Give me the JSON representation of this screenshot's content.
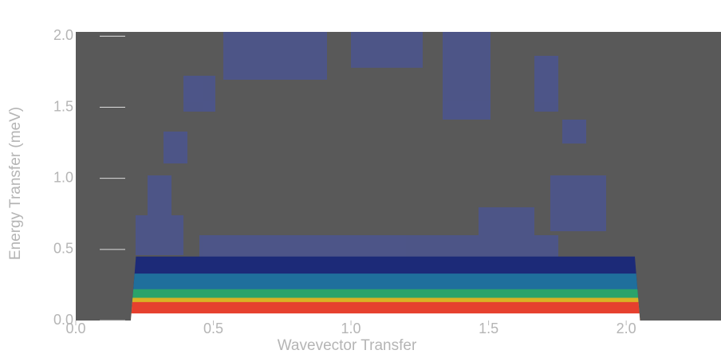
{
  "chart_data": {
    "type": "surface",
    "x_label": "Wavevector Transfer",
    "y_label": "Energy Transfer (meV)",
    "xlim": [
      0,
      2.33
    ],
    "ylim": [
      0,
      2.03
    ],
    "xticks": [
      {
        "value": 0,
        "label": "0.0"
      },
      {
        "value": 0.5,
        "label": "0.5"
      },
      {
        "value": 1,
        "label": "1.0"
      },
      {
        "value": 1.5,
        "label": "1.5"
      },
      {
        "value": 2,
        "label": "2.0"
      }
    ],
    "yticks": [
      {
        "value": 0,
        "label": "0.0"
      },
      {
        "value": 0.5,
        "label": "0.5"
      },
      {
        "value": 1,
        "label": "1.0"
      },
      {
        "value": 1.5,
        "label": "1.5"
      },
      {
        "value": 2,
        "label": "2.0"
      }
    ],
    "x_range": [
      0.2,
      2.05
    ],
    "layers": [
      {
        "color": "#1c2a78",
        "top": 0.45
      },
      {
        "color": "#1f6f9c",
        "top": 0.33
      },
      {
        "color": "#2aa36a",
        "top": 0.22
      },
      {
        "color": "#d9b224",
        "top": 0.16
      },
      {
        "color": "#e6402e",
        "top": 0.13
      },
      {
        "color": "#ffffff",
        "top": 0.05
      }
    ]
  }
}
